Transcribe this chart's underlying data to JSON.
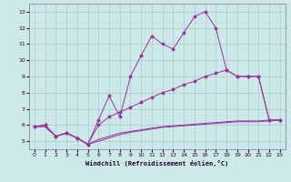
{
  "background_color": "#cce8e8",
  "grid_color": "#aacccc",
  "line_color": "#993399",
  "x_ticks": [
    0,
    1,
    2,
    3,
    4,
    5,
    6,
    7,
    8,
    9,
    10,
    11,
    12,
    13,
    14,
    15,
    16,
    17,
    18,
    19,
    20,
    21,
    22,
    23
  ],
  "y_ticks": [
    5,
    6,
    7,
    8,
    9,
    10,
    11,
    12,
    13
  ],
  "ylim": [
    4.5,
    13.5
  ],
  "xlim": [
    -0.5,
    23.5
  ],
  "xlabel": "Windchill (Refroidissement éolien,°C)",
  "curve1_x": [
    0,
    1,
    2,
    3,
    4,
    5,
    6,
    7,
    8,
    9,
    10,
    11,
    12,
    13,
    14,
    15,
    16,
    17,
    18,
    19,
    20,
    21,
    22,
    23
  ],
  "curve1_y": [
    5.9,
    6.0,
    5.3,
    5.5,
    5.2,
    4.8,
    6.3,
    7.8,
    6.5,
    9.0,
    10.3,
    11.5,
    11.0,
    10.7,
    11.7,
    12.7,
    13.0,
    12.0,
    9.4,
    9.0,
    9.0,
    9.0,
    6.3,
    6.3
  ],
  "curve2_x": [
    0,
    1,
    2,
    3,
    4,
    5,
    6,
    7,
    8,
    9,
    10,
    11,
    12,
    13,
    14,
    15,
    16,
    17,
    18,
    19,
    20,
    21,
    22,
    23
  ],
  "curve2_y": [
    5.9,
    6.0,
    5.3,
    5.5,
    5.2,
    4.8,
    6.0,
    6.5,
    6.8,
    7.1,
    7.4,
    7.7,
    8.0,
    8.2,
    8.5,
    8.7,
    9.0,
    9.2,
    9.4,
    9.0,
    9.0,
    9.0,
    6.3,
    6.3
  ],
  "line3_x": [
    0,
    1,
    2,
    3,
    4,
    5,
    6,
    7,
    8,
    9,
    10,
    11,
    12,
    13,
    14,
    15,
    16,
    17,
    18,
    19,
    20,
    21,
    22,
    23
  ],
  "line3_y": [
    5.9,
    5.9,
    5.3,
    5.5,
    5.2,
    4.8,
    5.0,
    5.2,
    5.4,
    5.55,
    5.65,
    5.75,
    5.85,
    5.9,
    5.95,
    6.0,
    6.05,
    6.1,
    6.15,
    6.2,
    6.2,
    6.2,
    6.25,
    6.3
  ],
  "line4_x": [
    0,
    1,
    2,
    3,
    4,
    5,
    6,
    7,
    8,
    9,
    10,
    11,
    12,
    13,
    14,
    15,
    16,
    17,
    18,
    19,
    20,
    21,
    22,
    23
  ],
  "line4_y": [
    5.9,
    5.9,
    5.3,
    5.5,
    5.2,
    4.8,
    5.1,
    5.3,
    5.5,
    5.6,
    5.7,
    5.8,
    5.9,
    5.95,
    6.0,
    6.05,
    6.1,
    6.15,
    6.2,
    6.25,
    6.25,
    6.25,
    6.3,
    6.3
  ]
}
